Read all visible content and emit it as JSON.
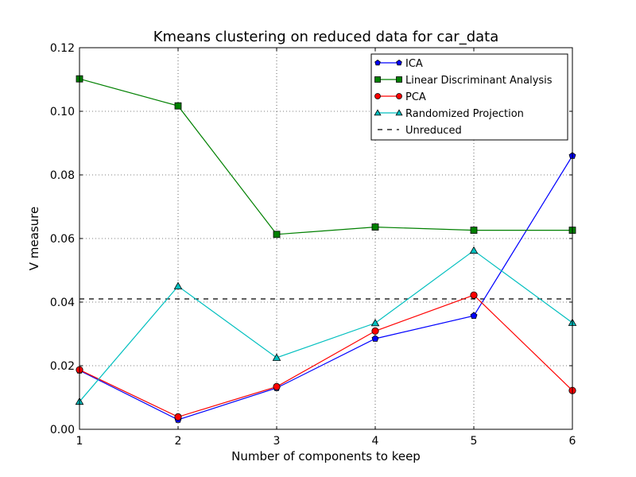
{
  "chart_data": {
    "type": "line",
    "title": "Kmeans clustering on reduced data for car_data",
    "xlabel": "Number of components to keep",
    "ylabel": "V measure",
    "xlim": [
      1,
      6
    ],
    "ylim": [
      0.0,
      0.12
    ],
    "grid": true,
    "grid_style": "dotted",
    "legend_position": "top-right",
    "x": [
      1,
      2,
      3,
      4,
      5,
      6
    ],
    "x_ticks": [
      "1",
      "2",
      "3",
      "4",
      "5",
      "6"
    ],
    "y_ticks": [
      "0.00",
      "0.02",
      "0.04",
      "0.06",
      "0.08",
      "0.10",
      "0.12"
    ],
    "series": [
      {
        "name": "ICA",
        "color": "#0000ff",
        "marker": "pentagon",
        "values": [
          0.0185,
          0.003,
          0.013,
          0.0285,
          0.0357,
          0.086
        ]
      },
      {
        "name": "Linear Discriminant Analysis",
        "color": "#008000",
        "marker": "square",
        "values": [
          0.1102,
          0.1017,
          0.0613,
          0.0636,
          0.0626,
          0.0626
        ]
      },
      {
        "name": "PCA",
        "color": "#ff0000",
        "marker": "circle",
        "values": [
          0.0187,
          0.0039,
          0.0134,
          0.0309,
          0.0422,
          0.0122
        ]
      },
      {
        "name": "Randomized Projection",
        "color": "#00bfbf",
        "marker": "triangle",
        "values": [
          0.0087,
          0.045,
          0.0225,
          0.0334,
          0.0562,
          0.0335
        ]
      }
    ],
    "reference_lines": [
      {
        "name": "Unreduced",
        "color": "#000000",
        "style": "dashed",
        "value": 0.041
      }
    ]
  }
}
